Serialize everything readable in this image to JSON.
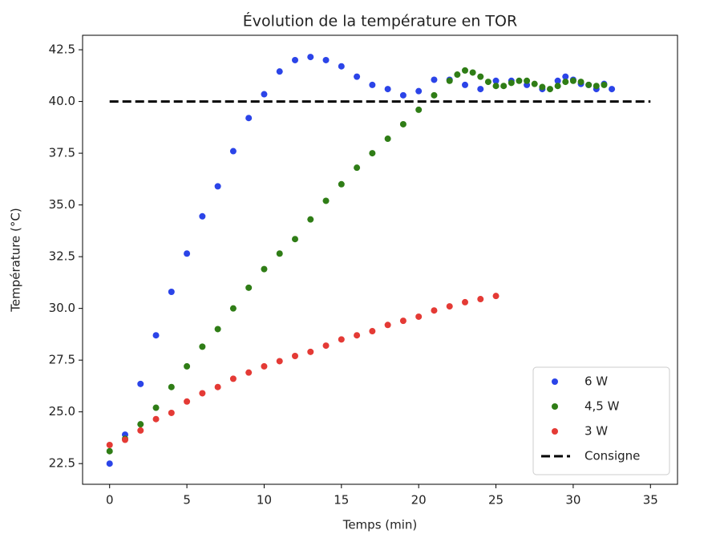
{
  "chart_data": {
    "type": "scatter",
    "title": "Évolution de la température en TOR",
    "xlabel": "Temps (min)",
    "ylabel": "Température (°C)",
    "xlim": [
      -1.75,
      36.75
    ],
    "ylim": [
      21.5,
      43.2
    ],
    "xticks": [
      0,
      5,
      10,
      15,
      20,
      25,
      30,
      35
    ],
    "yticks": [
      22.5,
      {
        "value": 25,
        "label": "25.0"
      },
      27.5,
      {
        "value": 30,
        "label": "30.0"
      },
      32.5,
      {
        "value": 35,
        "label": "35.0"
      },
      37.5,
      {
        "value": 40,
        "label": "40.0"
      },
      42.5
    ],
    "legend": "lower right",
    "series": [
      {
        "name": "6 W",
        "color": "#2b44e8",
        "mode": "markers",
        "x": [
          0,
          1,
          2,
          3,
          4,
          5,
          6,
          7,
          8,
          9,
          10,
          11,
          12,
          13,
          14,
          15,
          16,
          17,
          18,
          19,
          20,
          21,
          22,
          23,
          24,
          25,
          26,
          27,
          28,
          29,
          29.5,
          30,
          30.5,
          31,
          31.5,
          32,
          32.5
        ],
        "values": [
          22.5,
          23.9,
          26.35,
          28.7,
          30.8,
          32.65,
          34.45,
          35.9,
          37.6,
          39.2,
          40.35,
          41.45,
          42.0,
          42.15,
          42.0,
          41.7,
          41.2,
          40.8,
          40.6,
          40.3,
          40.5,
          41.05,
          41.05,
          40.8,
          40.6,
          41.0,
          41.0,
          40.8,
          40.6,
          41.0,
          41.2,
          41.05,
          40.85,
          40.8,
          40.6,
          40.85,
          40.6
        ]
      },
      {
        "name": "4,5 W",
        "color": "#2f7d16",
        "mode": "markers",
        "x": [
          0,
          1,
          2,
          3,
          4,
          5,
          6,
          7,
          8,
          9,
          10,
          11,
          12,
          13,
          14,
          15,
          16,
          17,
          18,
          19,
          20,
          21,
          22,
          22.5,
          23,
          23.5,
          24,
          24.5,
          25,
          25.5,
          26,
          26.5,
          27,
          27.5,
          28,
          28.5,
          29,
          29.5,
          30,
          30.5,
          31,
          31.5,
          32
        ],
        "values": [
          23.1,
          23.7,
          24.4,
          25.2,
          26.2,
          27.2,
          28.15,
          29.0,
          30.0,
          31.0,
          31.9,
          32.65,
          33.35,
          34.3,
          35.2,
          36.0,
          36.8,
          37.5,
          38.2,
          38.9,
          39.6,
          40.3,
          41.0,
          41.3,
          41.5,
          41.4,
          41.2,
          40.95,
          40.75,
          40.75,
          40.9,
          41.0,
          41.0,
          40.85,
          40.7,
          40.6,
          40.75,
          40.95,
          41.0,
          40.95,
          40.8,
          40.75,
          40.8
        ]
      },
      {
        "name": "3 W",
        "color": "#e43a35",
        "mode": "markers",
        "x": [
          0,
          1,
          2,
          3,
          4,
          5,
          6,
          7,
          8,
          9,
          10,
          11,
          12,
          13,
          14,
          15,
          16,
          17,
          18,
          19,
          20,
          21,
          22,
          23,
          24,
          25
        ],
        "values": [
          23.4,
          23.65,
          24.1,
          24.65,
          24.95,
          25.5,
          25.9,
          26.2,
          26.6,
          26.9,
          27.2,
          27.45,
          27.7,
          27.9,
          28.2,
          28.5,
          28.7,
          28.9,
          29.2,
          29.4,
          29.6,
          29.9,
          30.1,
          30.3,
          30.45,
          30.6
        ]
      },
      {
        "name": "Consigne",
        "color": "#000000",
        "mode": "dashed-line",
        "x": [
          0,
          35
        ],
        "values": [
          40,
          40
        ]
      }
    ]
  }
}
